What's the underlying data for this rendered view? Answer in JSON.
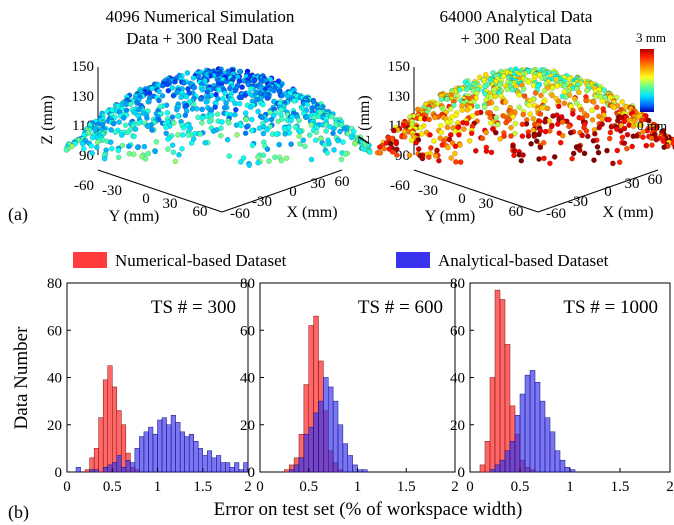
{
  "panel_labels": {
    "a": "(a)",
    "b": "(b)"
  },
  "colors": {
    "numerical": "#ff3b3b",
    "analytical": "#3a33ee"
  },
  "colorbar": {
    "max_label": "3 mm",
    "min_label": "0 mm",
    "colormap": "jet"
  },
  "chart_data": [
    {
      "type": "scatter3d",
      "title": [
        "4096 Numerical Simulation",
        "Data + 300 Real Data"
      ],
      "xlabel": "X (mm)",
      "ylabel": "Y (mm)",
      "zlabel": "Z (mm)",
      "xticks": [
        "-60",
        "-30",
        "0",
        "30",
        "60"
      ],
      "yticks": [
        "-60",
        "-30",
        "0",
        "30",
        "60"
      ],
      "zticks": [
        "150",
        "130",
        "110",
        "90"
      ],
      "zlim": [
        90,
        150
      ],
      "error_range_mm": [
        0,
        1.5
      ],
      "description_color_bias": "mostly cyan/blue (low error)"
    },
    {
      "type": "scatter3d",
      "title": [
        "64000 Analytical Data",
        "+ 300 Real Data"
      ],
      "xlabel": "X (mm)",
      "ylabel": "Y (mm)",
      "zlabel": "Z (mm)",
      "xticks": [
        "-60",
        "-30",
        "0",
        "30",
        "60"
      ],
      "yticks": [
        "-60",
        "-30",
        "0",
        "30",
        "60"
      ],
      "zticks": [
        "150",
        "130",
        "110",
        "90"
      ],
      "zlim": [
        90,
        150
      ],
      "error_range_mm": [
        0,
        3
      ],
      "description_color_bias": "green/yellow with red at edges (higher error)"
    },
    {
      "type": "bar",
      "annotation": "TS # = 300",
      "xlim": [
        0,
        2
      ],
      "ylim": [
        0,
        80
      ],
      "xticks": [
        "0",
        "0.5",
        "1",
        "1.5",
        "2"
      ],
      "yticks": [
        "0",
        "20",
        "40",
        "60",
        "80"
      ],
      "bin_start": 0,
      "bin_width": 0.05,
      "series": [
        {
          "name": "Numerical-based Dataset",
          "values": [
            0,
            0,
            0,
            0,
            1,
            6,
            10,
            23,
            39,
            45,
            36,
            26,
            20,
            8,
            2,
            1,
            0,
            0,
            0,
            0,
            0,
            0,
            0,
            0,
            0,
            0,
            0,
            0,
            0,
            0,
            0,
            0,
            0,
            0,
            0,
            0,
            0,
            0,
            0,
            0
          ]
        },
        {
          "name": "Analytical-based Dataset",
          "values": [
            0,
            0,
            2,
            0,
            0,
            1,
            1,
            0,
            2,
            3,
            4,
            7,
            2,
            5,
            4,
            10,
            15,
            17,
            19,
            16,
            22,
            23,
            20,
            24,
            21,
            17,
            15,
            16,
            13,
            10,
            7,
            9,
            6,
            7,
            4,
            4,
            2,
            4,
            1,
            4
          ]
        }
      ]
    },
    {
      "type": "bar",
      "annotation": "TS # = 600",
      "xlim": [
        0,
        2
      ],
      "ylim": [
        0,
        80
      ],
      "xticks": [
        "0",
        "0.5",
        "1",
        "1.5",
        "2"
      ],
      "yticks": [
        "0",
        "20",
        "40",
        "60",
        "80"
      ],
      "bin_start": 0,
      "bin_width": 0.05,
      "series": [
        {
          "name": "Numerical-based Dataset",
          "values": [
            0,
            0,
            0,
            0,
            0,
            1,
            3,
            6,
            16,
            37,
            62,
            66,
            47,
            26,
            9,
            4,
            1,
            0,
            0,
            0,
            0,
            0,
            0,
            0,
            0,
            0,
            0,
            0,
            0,
            0,
            0,
            0,
            0,
            0,
            0,
            0,
            0,
            0,
            0,
            0
          ]
        },
        {
          "name": "Analytical-based Dataset",
          "values": [
            0,
            0,
            0,
            0,
            0,
            0,
            1,
            3,
            6,
            16,
            19,
            25,
            30,
            40,
            36,
            30,
            20,
            12,
            7,
            3,
            1,
            1,
            0,
            0,
            0,
            0,
            0,
            0,
            0,
            0,
            0,
            0,
            0,
            0,
            0,
            0,
            0,
            0,
            0,
            0
          ]
        }
      ]
    },
    {
      "type": "bar",
      "annotation": "TS # = 1000",
      "xlim": [
        0,
        2
      ],
      "ylim": [
        0,
        80
      ],
      "xticks": [
        "0",
        "0.5",
        "1",
        "1.5",
        "2"
      ],
      "yticks": [
        "0",
        "20",
        "40",
        "60",
        "80"
      ],
      "bin_start": 0,
      "bin_width": 0.05,
      "series": [
        {
          "name": "Numerical-based Dataset",
          "values": [
            0,
            0,
            3,
            13,
            40,
            77,
            73,
            54,
            28,
            16,
            5,
            2,
            1,
            0,
            0,
            0,
            0,
            0,
            0,
            0,
            0,
            0,
            0,
            0,
            0,
            0,
            0,
            0,
            0,
            0,
            0,
            0,
            0,
            0,
            0,
            0,
            0,
            0,
            0,
            0
          ]
        },
        {
          "name": "Analytical-based Dataset",
          "values": [
            0,
            0,
            0,
            0,
            1,
            3,
            5,
            9,
            13,
            24,
            33,
            41,
            43,
            38,
            30,
            23,
            17,
            9,
            5,
            2,
            1,
            0,
            0,
            0,
            0,
            0,
            0,
            0,
            0,
            0,
            0,
            0,
            0,
            0,
            0,
            0,
            0,
            0,
            0,
            0
          ]
        }
      ]
    }
  ],
  "histogram_axes": {
    "xlabel": "Error on test set (% of workspace width)",
    "ylabel": "Data Number"
  },
  "legend": {
    "numerical_label": "Numerical-based Dataset",
    "analytical_label": "Analytical-based Dataset"
  }
}
